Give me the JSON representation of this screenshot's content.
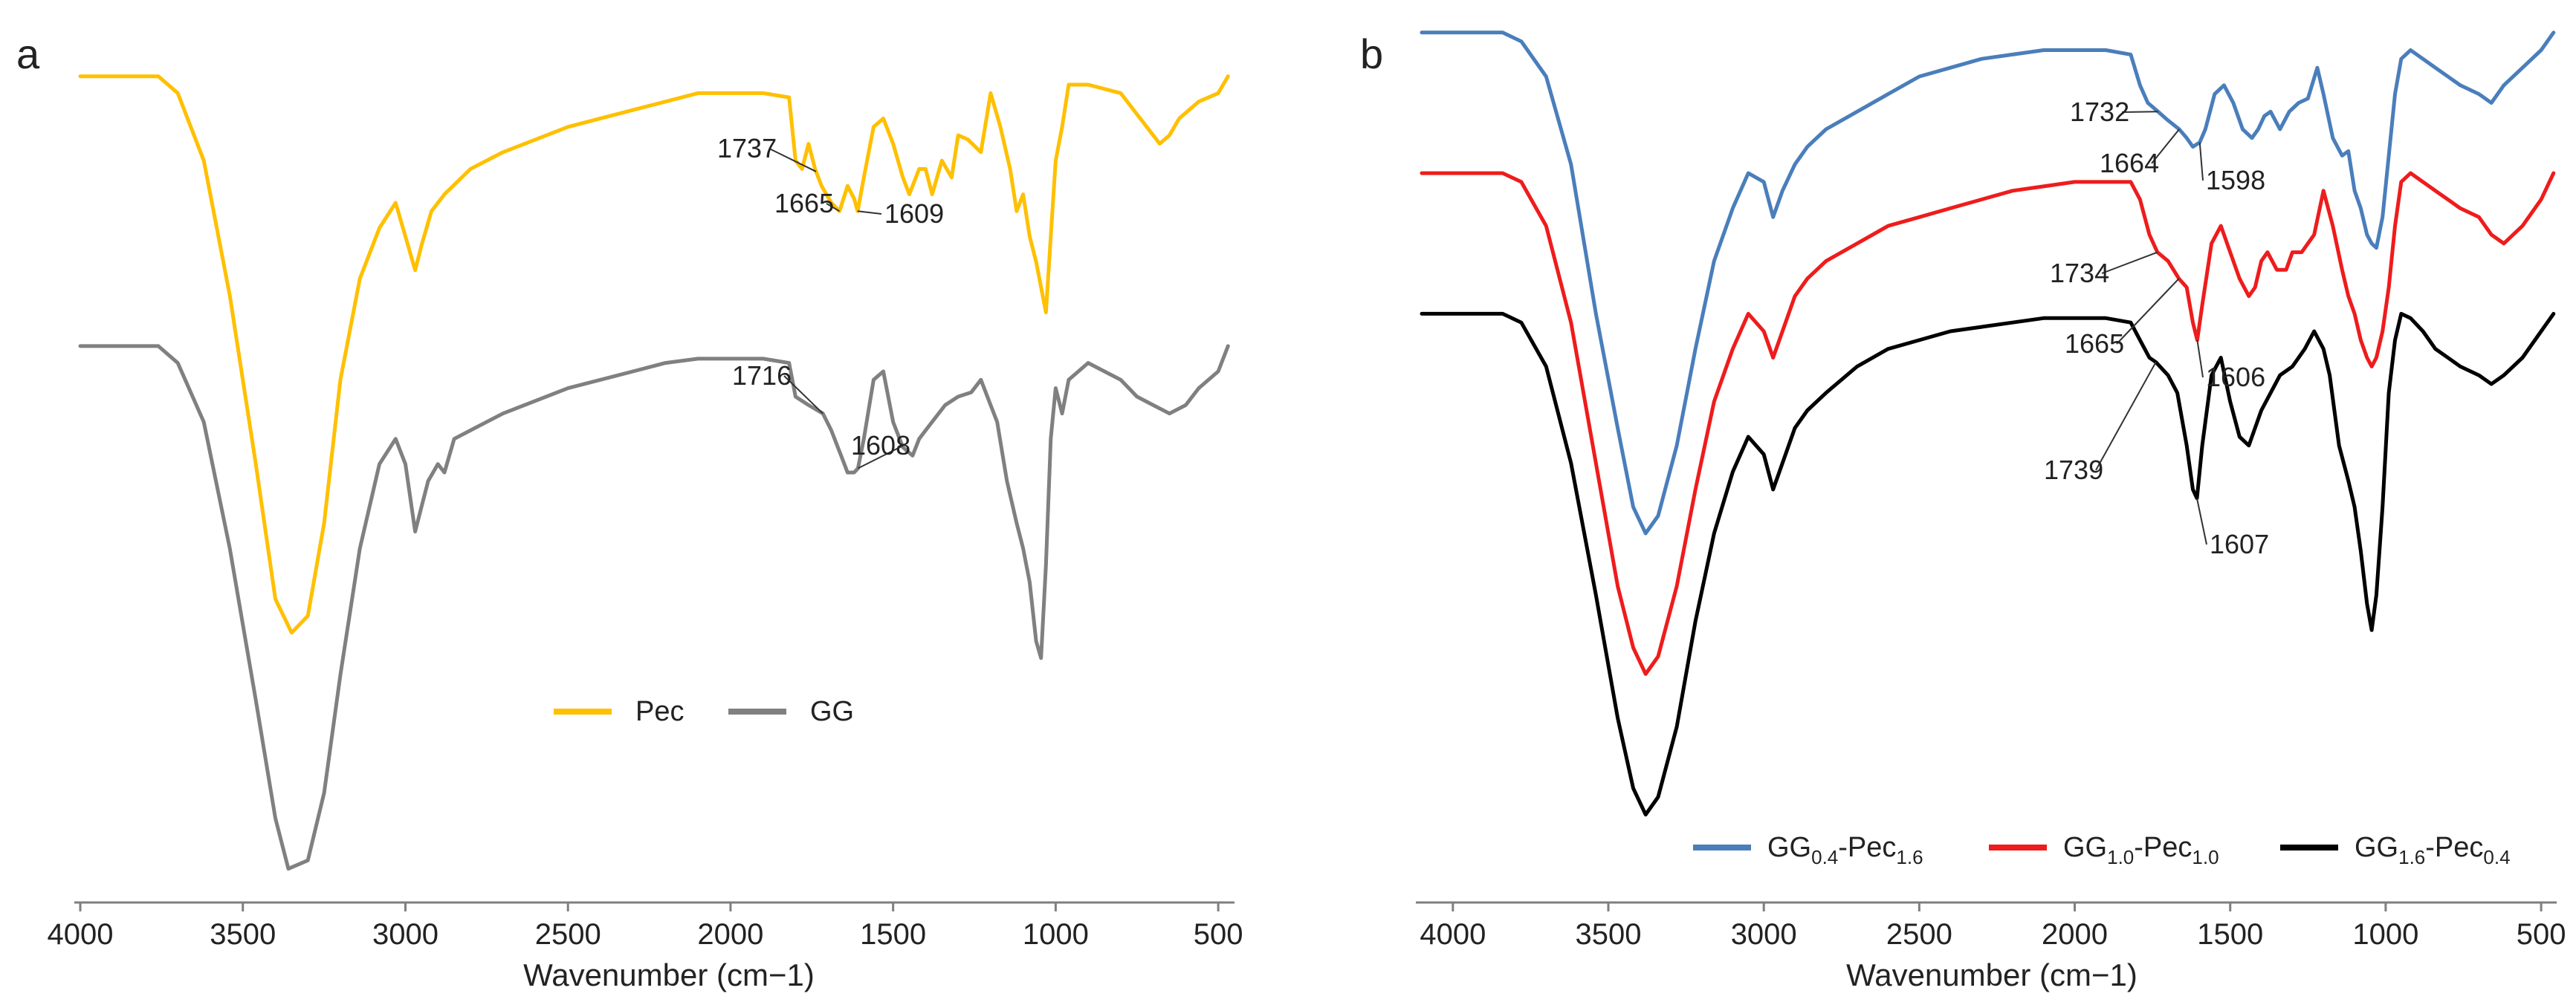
{
  "chart_data": [
    {
      "type": "line",
      "panel_label": "a",
      "title": "",
      "xlabel": "Wavenumber (cm−1)",
      "ylabel": "",
      "xlim": [
        4000,
        450
      ],
      "x_reversed": true,
      "y_units": "relative transmittance (offset, arbitrary units)",
      "ylim": [
        0,
        100
      ],
      "xticks": [
        4000,
        3500,
        3000,
        2500,
        2000,
        1500,
        1000,
        500
      ],
      "xtick_labels": [
        "4000",
        "3500",
        "3000",
        "2500",
        "2000",
        "1500",
        "1000",
        "500"
      ],
      "legend": [
        "Pec",
        "GG"
      ],
      "legend_position": "bottom-center",
      "series": [
        {
          "name": "Pec",
          "color": "#FFC000",
          "x": [
            4000,
            3760,
            3700,
            3620,
            3540,
            3460,
            3400,
            3350,
            3300,
            3250,
            3200,
            3140,
            3080,
            3030,
            3000,
            2970,
            2950,
            2920,
            2880,
            2800,
            2700,
            2500,
            2300,
            2200,
            2100,
            2000,
            1900,
            1820,
            1800,
            1780,
            1760,
            1740,
            1720,
            1690,
            1665,
            1640,
            1620,
            1609,
            1590,
            1560,
            1530,
            1500,
            1470,
            1450,
            1420,
            1400,
            1380,
            1350,
            1320,
            1300,
            1270,
            1230,
            1200,
            1170,
            1140,
            1120,
            1100,
            1080,
            1060,
            1045,
            1030,
            1015,
            1000,
            980,
            960,
            900,
            850,
            800,
            760,
            720,
            680,
            650,
            620,
            560,
            500,
            470
          ],
          "values": [
            98,
            98,
            96,
            88,
            72,
            52,
            36,
            32,
            34,
            45,
            62,
            74,
            80,
            83,
            79,
            75,
            78,
            82,
            84,
            87,
            89,
            92,
            94,
            95,
            96,
            96,
            96,
            95.5,
            88,
            87,
            90,
            87,
            85,
            83,
            82,
            85,
            83.5,
            82,
            86,
            92,
            93,
            90,
            86,
            84,
            87,
            87,
            84,
            88,
            86,
            91,
            90.5,
            89,
            96,
            92,
            87,
            82,
            84,
            79,
            76,
            73,
            70,
            79,
            88,
            92,
            97,
            97,
            96.5,
            96,
            94,
            92,
            90,
            91,
            93,
            95,
            96,
            98
          ]
        },
        {
          "name": "GG",
          "color": "#808080",
          "x": [
            4000,
            3760,
            3700,
            3620,
            3540,
            3460,
            3400,
            3360,
            3300,
            3250,
            3200,
            3140,
            3080,
            3030,
            3000,
            2970,
            2950,
            2930,
            2900,
            2880,
            2850,
            2800,
            2700,
            2500,
            2300,
            2200,
            2100,
            2000,
            1900,
            1820,
            1800,
            1760,
            1716,
            1690,
            1660,
            1640,
            1620,
            1608,
            1590,
            1560,
            1530,
            1500,
            1470,
            1440,
            1420,
            1400,
            1370,
            1340,
            1300,
            1260,
            1230,
            1200,
            1180,
            1150,
            1120,
            1100,
            1080,
            1060,
            1045,
            1030,
            1015,
            1000,
            980,
            960,
            900,
            850,
            800,
            750,
            700,
            650,
            600,
            560,
            500,
            470
          ],
          "values": [
            66,
            66,
            64,
            57,
            42,
            24,
            10,
            4,
            5,
            13,
            27,
            42,
            52,
            55,
            52,
            44,
            47,
            50,
            52,
            51,
            55,
            56,
            58,
            61,
            63,
            64,
            64.5,
            64.5,
            64.5,
            64,
            60,
            59,
            58,
            56,
            53,
            51,
            51,
            51.5,
            55,
            62,
            63,
            57,
            54,
            53,
            55,
            56,
            57.5,
            59,
            60,
            60.5,
            62,
            59,
            57,
            50,
            45,
            42,
            38,
            31,
            29,
            40,
            55,
            61,
            58,
            62,
            64,
            63,
            62,
            60,
            59,
            58,
            59,
            61,
            63,
            66
          ]
        }
      ],
      "annotations": [
        "1737",
        "1665",
        "1609",
        "1716",
        "1608"
      ]
    },
    {
      "type": "line",
      "panel_label": "b",
      "title": "",
      "xlabel": "Wavenumber (cm−1)",
      "ylabel": "",
      "xlim": [
        4100,
        450
      ],
      "x_reversed": true,
      "y_units": "relative transmittance (offset, arbitrary units)",
      "ylim": [
        0,
        100
      ],
      "xticks": [
        4000,
        3500,
        3000,
        2500,
        2000,
        1500,
        1000,
        500
      ],
      "xtick_labels": [
        "4000",
        "3500",
        "3000",
        "2500",
        "2000",
        "1500",
        "1000",
        "500"
      ],
      "legend_position": "bottom",
      "series": [
        {
          "name": "GG0.4-Pec1.6",
          "legend_parts": [
            "GG",
            "0.4",
            "-Pec",
            "1.6"
          ],
          "color": "#4A7EBB",
          "x": [
            4100,
            3840,
            3780,
            3700,
            3620,
            3540,
            3470,
            3420,
            3380,
            3340,
            3280,
            3220,
            3160,
            3100,
            3050,
            3000,
            2970,
            2940,
            2900,
            2860,
            2800,
            2700,
            2600,
            2500,
            2400,
            2300,
            2200,
            2100,
            2000,
            1900,
            1820,
            1790,
            1765,
            1732,
            1700,
            1664,
            1640,
            1620,
            1598,
            1580,
            1550,
            1520,
            1490,
            1460,
            1430,
            1410,
            1390,
            1370,
            1340,
            1310,
            1280,
            1250,
            1220,
            1200,
            1170,
            1140,
            1120,
            1100,
            1080,
            1060,
            1045,
            1030,
            1010,
            990,
            970,
            950,
            920,
            880,
            840,
            800,
            760,
            700,
            660,
            620,
            560,
            500,
            460
          ],
          "values": [
            99,
            99,
            98,
            94,
            84,
            67,
            54,
            45,
            42,
            44,
            52,
            63,
            73,
            79,
            83,
            82,
            78,
            81,
            84,
            86,
            88,
            90,
            92,
            94,
            95,
            96,
            96.5,
            97,
            97,
            97,
            96.5,
            93,
            91,
            90,
            89,
            88,
            87,
            86,
            86.5,
            88,
            92,
            93,
            91,
            88,
            87,
            88,
            89.5,
            90,
            88,
            90,
            91,
            91.5,
            95,
            92,
            87,
            85,
            85.5,
            81,
            79,
            76,
            75,
            74.5,
            78,
            85,
            92,
            96,
            97,
            96,
            95,
            94,
            93,
            92,
            91,
            93,
            95,
            97,
            99
          ]
        },
        {
          "name": "GG1.0-Pec1.0",
          "legend_parts": [
            "GG",
            "1.0",
            "-Pec",
            "1.0"
          ],
          "color": "#EE1C1C",
          "x": [
            4100,
            3840,
            3780,
            3700,
            3620,
            3540,
            3470,
            3420,
            3380,
            3340,
            3280,
            3220,
            3160,
            3100,
            3050,
            3000,
            2970,
            2940,
            2900,
            2860,
            2800,
            2700,
            2600,
            2500,
            2400,
            2300,
            2200,
            2100,
            2000,
            1900,
            1820,
            1790,
            1760,
            1734,
            1700,
            1665,
            1640,
            1620,
            1606,
            1590,
            1560,
            1530,
            1500,
            1470,
            1440,
            1420,
            1400,
            1380,
            1350,
            1320,
            1300,
            1270,
            1230,
            1200,
            1170,
            1140,
            1120,
            1100,
            1080,
            1060,
            1045,
            1030,
            1010,
            990,
            970,
            950,
            920,
            880,
            840,
            800,
            760,
            700,
            660,
            620,
            560,
            500,
            460
          ],
          "values": [
            83,
            83,
            82,
            77,
            66,
            50,
            36,
            29,
            26,
            28,
            36,
            47,
            57,
            63,
            67,
            65,
            62,
            65,
            69,
            71,
            73,
            75,
            77,
            78,
            79,
            80,
            81,
            81.5,
            82,
            82,
            82,
            80,
            76,
            74,
            73,
            71,
            70,
            66,
            64,
            68,
            75,
            77,
            74,
            71,
            69,
            70,
            73,
            74,
            72,
            72,
            74,
            74,
            76,
            81,
            77,
            72,
            69,
            67,
            64,
            62,
            61,
            62,
            65,
            70,
            77,
            82,
            83,
            82,
            81,
            80,
            79,
            78,
            76,
            75,
            77,
            80,
            83
          ]
        },
        {
          "name": "GG1.6-Pec0.4",
          "legend_parts": [
            "GG",
            "1.6",
            "-Pec",
            "0.4"
          ],
          "color": "#000000",
          "x": [
            4100,
            3840,
            3780,
            3700,
            3620,
            3540,
            3470,
            3420,
            3380,
            3340,
            3280,
            3220,
            3160,
            3100,
            3050,
            3000,
            2970,
            2940,
            2900,
            2860,
            2800,
            2700,
            2600,
            2500,
            2400,
            2300,
            2200,
            2100,
            2000,
            1900,
            1820,
            1790,
            1760,
            1739,
            1700,
            1670,
            1640,
            1620,
            1607,
            1590,
            1560,
            1530,
            1500,
            1470,
            1440,
            1420,
            1400,
            1370,
            1340,
            1300,
            1260,
            1230,
            1200,
            1180,
            1150,
            1120,
            1100,
            1080,
            1060,
            1045,
            1030,
            1010,
            990,
            970,
            950,
            920,
            880,
            840,
            800,
            760,
            700,
            660,
            620,
            560,
            500,
            460
          ],
          "values": [
            67,
            67,
            66,
            61,
            50,
            35,
            21,
            13,
            10,
            12,
            20,
            32,
            42,
            49,
            53,
            51,
            47,
            50,
            54,
            56,
            58,
            61,
            63,
            64,
            65,
            65.5,
            66,
            66.5,
            66.5,
            66.5,
            66,
            64,
            62,
            61.5,
            60,
            58,
            52,
            47,
            46,
            52,
            60,
            62,
            57,
            53,
            52,
            54,
            56,
            58,
            60,
            61,
            63,
            65,
            63,
            60,
            52,
            48,
            45,
            40,
            34,
            31,
            35,
            45,
            58,
            64,
            67,
            66.5,
            65,
            63,
            62,
            61,
            60,
            59,
            60,
            62,
            65,
            67
          ]
        }
      ],
      "annotations": [
        "1732",
        "1664",
        "1598",
        "1734",
        "1665",
        "1606",
        "1739",
        "1607"
      ]
    }
  ]
}
